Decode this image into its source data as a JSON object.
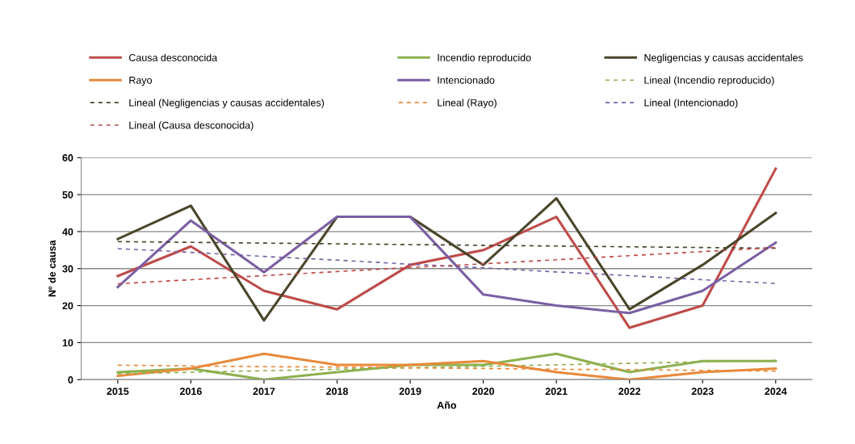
{
  "chart_data": {
    "type": "line",
    "xlabel": "Año",
    "ylabel": "Nº de causa",
    "categories": [
      "2015",
      "2016",
      "2017",
      "2018",
      "2019",
      "2020",
      "2021",
      "2022",
      "2023",
      "2024"
    ],
    "ylim": [
      0,
      60
    ],
    "yticks": [
      0,
      10,
      20,
      30,
      40,
      50,
      60
    ],
    "grid": "y",
    "legend": "top",
    "marker": "none",
    "series": [
      {
        "name": "Causa desconocida",
        "color": "#be4b48",
        "values": [
          28,
          36,
          24,
          19,
          31,
          35,
          44,
          14,
          20,
          57
        ]
      },
      {
        "name": "Incendio reproducido",
        "color": "#8db04f",
        "values": [
          2,
          3,
          0,
          2,
          4,
          4,
          7,
          2,
          5,
          5
        ]
      },
      {
        "name": "Negligencias y causas accidentales",
        "color": "#4a452a",
        "values": [
          38,
          47,
          16,
          44,
          44,
          31,
          49,
          19,
          31,
          45
        ]
      },
      {
        "name": "Rayo",
        "color": "#e8893a",
        "values": [
          1,
          3,
          7,
          4,
          4,
          5,
          2,
          0,
          2,
          3
        ]
      },
      {
        "name": "Intencionado",
        "color": "#7a5fa3",
        "values": [
          25,
          43,
          29,
          44,
          44,
          23,
          20,
          18,
          24,
          37
        ]
      },
      {
        "name": "Lineal (Incendio reproducido)",
        "color": "#8db04f",
        "line_style": "dashed",
        "values": [
          1.6,
          2.0,
          2.4,
          2.8,
          3.2,
          3.6,
          4.0,
          4.4,
          4.8,
          5.2
        ]
      },
      {
        "name": "Lineal (Negligencias y causas accidentales)",
        "color": "#4a452a",
        "line_style": "dashed",
        "values": [
          37.3,
          37.1,
          36.9,
          36.7,
          36.5,
          36.3,
          36.1,
          35.9,
          35.7,
          35.5
        ]
      },
      {
        "name": "Lineal (Rayo)",
        "color": "#e8893a",
        "line_style": "dashed",
        "values": [
          3.9,
          3.7,
          3.5,
          3.4,
          3.2,
          3.0,
          2.8,
          2.7,
          2.5,
          2.3
        ]
      },
      {
        "name": "Lineal (Intencionado)",
        "color": "#7a5fa3",
        "line_style": "dashed",
        "values": [
          35.4,
          34.4,
          33.3,
          32.3,
          31.2,
          30.2,
          29.1,
          28.1,
          27.0,
          26.0
        ]
      },
      {
        "name": "Lineal (Causa desconocida)",
        "color": "#be4b48",
        "line_style": "dashed",
        "values": [
          25.9,
          27.0,
          28.1,
          29.2,
          30.3,
          31.3,
          32.4,
          33.5,
          34.6,
          35.7
        ]
      }
    ]
  }
}
